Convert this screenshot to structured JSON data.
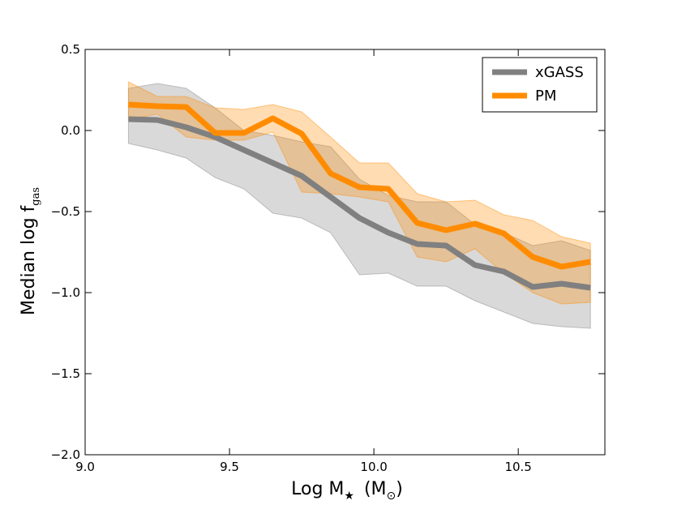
{
  "chart_data": {
    "type": "line",
    "title": "",
    "xlabel": {
      "main": "Log M",
      "sub": "★",
      "unit_open": "(M",
      "unit_sub": "⊙",
      "unit_close": ")"
    },
    "ylabel": {
      "main": "Median log f",
      "sub": "gas"
    },
    "xlim": [
      9.0,
      10.8
    ],
    "ylim": [
      -2.0,
      0.5
    ],
    "xticks": [
      9.0,
      9.5,
      10.0,
      10.5
    ],
    "xtick_labels": [
      "9.0",
      "9.5",
      "10.0",
      "10.5"
    ],
    "yticks": [
      -2.0,
      -1.5,
      -1.0,
      -0.5,
      0.0,
      0.5
    ],
    "ytick_labels": [
      "−2.0",
      "−1.5",
      "−1.0",
      "−0.5",
      "0.0",
      "0.5"
    ],
    "legend_position": "top-right",
    "x": [
      9.15,
      9.25,
      9.35,
      9.45,
      9.55,
      9.65,
      9.75,
      9.85,
      9.95,
      10.05,
      10.15,
      10.25,
      10.35,
      10.45,
      10.55,
      10.65,
      10.75
    ],
    "series": [
      {
        "name": "xGASS",
        "color": "#808080",
        "band_opacity": 0.3,
        "median": [
          0.07,
          0.065,
          0.02,
          -0.04,
          -0.12,
          -0.2,
          -0.28,
          -0.41,
          -0.54,
          -0.63,
          -0.7,
          -0.71,
          -0.83,
          -0.87,
          -0.965,
          -0.945,
          -0.97
        ],
        "upper": [
          0.26,
          0.29,
          0.26,
          0.14,
          0.0,
          -0.03,
          -0.07,
          -0.1,
          -0.3,
          -0.4,
          -0.44,
          -0.44,
          -0.58,
          -0.63,
          -0.71,
          -0.68,
          -0.74
        ],
        "lower": [
          -0.08,
          -0.12,
          -0.17,
          -0.29,
          -0.36,
          -0.51,
          -0.54,
          -0.63,
          -0.89,
          -0.88,
          -0.96,
          -0.96,
          -1.05,
          -1.12,
          -1.19,
          -1.21,
          -1.22
        ]
      },
      {
        "name": "PM",
        "color": "#ff8c00",
        "band_opacity": 0.3,
        "median": [
          0.16,
          0.15,
          0.145,
          -0.015,
          -0.015,
          0.075,
          -0.02,
          -0.265,
          -0.35,
          -0.36,
          -0.57,
          -0.615,
          -0.575,
          -0.635,
          -0.78,
          -0.84,
          -0.81
        ],
        "upper": [
          0.3,
          0.21,
          0.21,
          0.14,
          0.13,
          0.16,
          0.115,
          -0.04,
          -0.2,
          -0.2,
          -0.39,
          -0.44,
          -0.43,
          -0.52,
          -0.555,
          -0.655,
          -0.695
        ],
        "lower": [
          0.07,
          0.1,
          -0.04,
          -0.06,
          -0.06,
          -0.01,
          -0.38,
          -0.39,
          -0.41,
          -0.44,
          -0.78,
          -0.81,
          -0.73,
          -0.88,
          -1.0,
          -1.07,
          -1.06
        ]
      }
    ]
  }
}
